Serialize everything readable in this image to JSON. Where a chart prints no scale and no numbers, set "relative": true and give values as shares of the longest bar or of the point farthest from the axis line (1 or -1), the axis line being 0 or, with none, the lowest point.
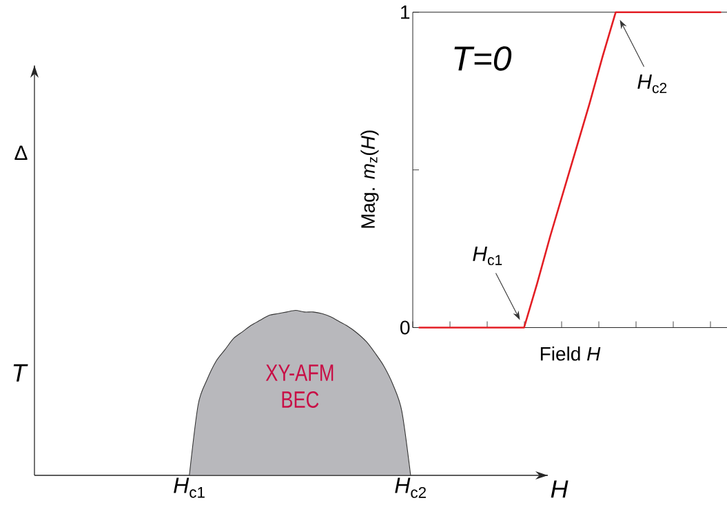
{
  "chart_data": [
    {
      "type": "area",
      "xlabel": "H",
      "ylabel": "T",
      "relative": true,
      "tick_labels": "x",
      "categories": [
        null,
        null,
        null,
        null,
        null,
        null,
        null,
        null,
        null,
        null,
        null,
        null,
        null,
        null,
        null,
        null,
        null,
        "*H*$_{c1}$",
        null,
        null,
        null,
        null,
        null,
        null,
        null,
        null,
        null,
        null,
        null,
        null,
        null,
        null,
        null,
        null,
        null,
        null,
        null,
        null,
        null,
        null,
        null,
        null,
        "*H*$_{c2}$",
        null,
        null,
        null,
        null,
        null,
        null,
        null,
        null,
        null,
        null,
        null,
        null,
        null,
        null,
        null
      ],
      "series": [
        {
          "color": "#b8b8bc",
          "values": [
            null,
            null,
            null,
            null,
            null,
            null,
            null,
            null,
            null,
            null,
            null,
            null,
            null,
            null,
            null,
            null,
            null,
            0,
            0.43,
            0.58,
            0.69,
            0.76,
            0.83,
            0.87,
            0.91,
            0.94,
            0.97,
            0.98,
            0.99,
            1,
            0.99,
            0.99,
            0.98,
            0.96,
            0.93,
            0.9,
            0.86,
            0.81,
            0.74,
            0.66,
            0.55,
            0.39,
            0,
            null,
            null,
            null,
            null,
            null,
            null,
            null,
            null,
            null,
            null,
            null,
            null,
            null,
            null,
            null
          ]
        }
      ],
      "annotations": [
        "XY-AFM BEC",
        "Δ"
      ]
    },
    {
      "type": "line",
      "xlabel": "Field *H*",
      "ylabel": "Mag. *m*$_{z}$(*H*)",
      "tick_labels": "y",
      "categories": [
        null,
        null,
        null,
        null,
        null,
        null,
        null,
        null,
        null,
        null,
        null,
        null,
        null,
        null,
        null,
        null,
        null,
        null,
        null,
        null,
        null,
        null,
        null,
        null
      ],
      "ylim": [
        0,
        1
      ],
      "yticks": [
        0,
        {
          "value": 0.5,
          "label": null
        },
        1
      ],
      "series": [
        {
          "color": "#e31e24",
          "values": [
            0,
            0,
            0,
            0,
            0,
            0,
            0,
            0,
            0,
            0.14,
            0.29,
            0.43,
            0.57,
            0.71,
            0.86,
            1,
            1,
            1,
            1,
            1,
            1,
            1,
            1,
            1
          ]
        }
      ],
      "annotations": [
        "T=0",
        "*H*$_{c1}$",
        "*H*$_{c2}$"
      ]
    }
  ]
}
